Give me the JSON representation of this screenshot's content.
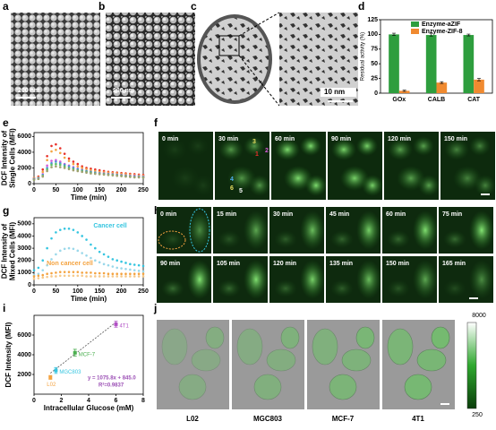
{
  "panels": [
    "a",
    "b",
    "c",
    "d",
    "e",
    "f",
    "g",
    "h",
    "i",
    "j"
  ],
  "images": {
    "a": {
      "scale_bar": "200 nm"
    },
    "b": {
      "scale_bar": "200 nm"
    },
    "c": {
      "scale_bar": "10 nm"
    },
    "f": {
      "times": [
        "0 min",
        "30 min",
        "60 min",
        "90 min",
        "120 min",
        "150 min"
      ],
      "cell_labels": [
        "1",
        "2",
        "3",
        "4",
        "5",
        "6"
      ]
    },
    "h": {
      "times": [
        "0 min",
        "15 min",
        "30 min",
        "45 min",
        "60 min",
        "75 min",
        "90 min",
        "105 min",
        "120 min",
        "135 min",
        "150 min",
        "165 min"
      ]
    },
    "j": {
      "cells": [
        "L02",
        "MGC803",
        "MCF-7",
        "4T1"
      ],
      "colorbar": {
        "max": 8000,
        "min": 250
      }
    }
  },
  "chart_data": [
    {
      "type": "bar",
      "ylabel": "Residual activity (%)",
      "categories": [
        "GOx",
        "CALB",
        "CAT"
      ],
      "series": [
        {
          "name": "Enzyme-aZIF",
          "color": "#2e9e3e",
          "values": [
            100,
            99,
            99
          ],
          "errors": [
            2,
            2,
            1.5
          ]
        },
        {
          "name": "Enzyme-ZIF-8",
          "color": "#f08a30",
          "values": [
            4,
            18,
            23
          ],
          "errors": [
            1,
            1.5,
            2
          ]
        }
      ],
      "ylim": [
        0,
        125
      ],
      "yticks": [
        0,
        25,
        50,
        75,
        100,
        125
      ],
      "legend": "top"
    },
    {
      "type": "scatter",
      "xlabel": "Time (min)",
      "ylabel": [
        "DCF Intensity of",
        "Single Cells (MFI)"
      ],
      "x": [
        0,
        10,
        20,
        30,
        40,
        50,
        60,
        70,
        80,
        90,
        100,
        110,
        120,
        130,
        140,
        150,
        160,
        170,
        180,
        190,
        200,
        210,
        220,
        230,
        240,
        250
      ],
      "series": [
        {
          "color": "#e8302a",
          "values": [
            700,
            900,
            1800,
            3500,
            4800,
            5000,
            4500,
            3800,
            3200,
            2800,
            2500,
            2200,
            2000,
            1900,
            1800,
            1700,
            1600,
            1500,
            1450,
            1400,
            1350,
            1300,
            1250,
            1200,
            1150,
            1100
          ]
        },
        {
          "color": "#f4a340",
          "values": [
            700,
            800,
            1500,
            3000,
            4100,
            4300,
            3900,
            3300,
            2900,
            2500,
            2200,
            2000,
            1850,
            1700,
            1600,
            1500,
            1450,
            1400,
            1350,
            1300,
            1250,
            1200,
            1150,
            1100,
            1050,
            1000
          ]
        },
        {
          "color": "#d65bd8",
          "values": [
            600,
            700,
            1200,
            2300,
            2900,
            3000,
            2800,
            2500,
            2300,
            2100,
            1900,
            1750,
            1600,
            1500,
            1400,
            1350,
            1300,
            1250,
            1200,
            1150,
            1100,
            1050,
            1000,
            1000,
            950,
            900
          ]
        },
        {
          "color": "#4f8fd8",
          "values": [
            600,
            700,
            1100,
            2000,
            2600,
            2800,
            2600,
            2400,
            2200,
            2000,
            1850,
            1700,
            1600,
            1500,
            1400,
            1300,
            1250,
            1200,
            1150,
            1100,
            1050,
            1000,
            950,
            900,
            900,
            850
          ]
        },
        {
          "color": "#5cbf6a",
          "values": [
            500,
            600,
            1000,
            1800,
            2400,
            2500,
            2400,
            2200,
            2000,
            1850,
            1700,
            1600,
            1500,
            1400,
            1300,
            1250,
            1200,
            1150,
            1100,
            1050,
            1000,
            950,
            900,
            850,
            850,
            800
          ]
        },
        {
          "color": "#a0a070",
          "values": [
            500,
            600,
            900,
            1600,
            2100,
            2200,
            2100,
            2000,
            1850,
            1700,
            1600,
            1500,
            1400,
            1300,
            1250,
            1200,
            1150,
            1100,
            1050,
            1000,
            950,
            900,
            850,
            800,
            800,
            750
          ]
        }
      ],
      "xlim": [
        0,
        250
      ],
      "xticks": [
        0,
        50,
        100,
        150,
        200,
        250
      ],
      "ylim": [
        0,
        6500
      ],
      "yticks": [
        0,
        2000,
        4000,
        6000
      ]
    },
    {
      "type": "scatter",
      "xlabel": "Time (min)",
      "ylabel": [
        "DCF Intensity of",
        "Mixed Cells (MFI)"
      ],
      "annotations": [
        {
          "text": "Cancer cell",
          "color": "#35c5e0"
        },
        {
          "text": "Non cancer cell",
          "color": "#f4a340"
        }
      ],
      "x": [
        0,
        10,
        20,
        30,
        40,
        50,
        60,
        70,
        80,
        90,
        100,
        110,
        120,
        130,
        140,
        150,
        160,
        170,
        180,
        190,
        200,
        210,
        220,
        230,
        240,
        250
      ],
      "series": [
        {
          "color": "#35c5e0",
          "values": [
            1200,
            1400,
            2000,
            3000,
            3800,
            4300,
            4500,
            4600,
            4600,
            4500,
            4300,
            4000,
            3700,
            3300,
            3000,
            2700,
            2500,
            2300,
            2100,
            2000,
            1900,
            1800,
            1700,
            1650,
            1600,
            1550
          ]
        },
        {
          "color": "#9ad8ea",
          "values": [
            800,
            900,
            1200,
            1600,
            2100,
            2500,
            2800,
            2950,
            3000,
            2950,
            2800,
            2600,
            2400,
            2200,
            2000,
            1850,
            1700,
            1600,
            1500,
            1400,
            1350,
            1300,
            1250,
            1200,
            1150,
            1100
          ]
        },
        {
          "color": "#f4a340",
          "values": [
            700,
            750,
            800,
            900,
            950,
            1000,
            1050,
            1050,
            1050,
            1050,
            1050,
            1000,
            1000,
            1000,
            950,
            950,
            950,
            900,
            900,
            900,
            900,
            900,
            900,
            900,
            900,
            900
          ]
        },
        {
          "color": "#f6c98a",
          "values": [
            500,
            550,
            600,
            650,
            700,
            700,
            750,
            750,
            750,
            750,
            750,
            750,
            700,
            700,
            700,
            700,
            700,
            700,
            700,
            700,
            700,
            700,
            700,
            700,
            700,
            700
          ]
        }
      ],
      "xlim": [
        0,
        250
      ],
      "xticks": [
        0,
        50,
        100,
        150,
        200,
        250
      ],
      "ylim": [
        0,
        5500
      ],
      "yticks": [
        0,
        1000,
        2000,
        3000,
        4000,
        5000
      ]
    },
    {
      "type": "fit",
      "xlabel": "Intracellular Glucose (mM)",
      "ylabel": [
        "DCF Intensity (MFI)"
      ],
      "categories": [
        "L02",
        "MGC803",
        "MCF-7",
        "4T1"
      ],
      "x": [
        1.2,
        1.6,
        3.0,
        6.0
      ],
      "values": [
        1700,
        2400,
        4200,
        7100
      ],
      "errors": [
        200,
        300,
        350,
        300
      ],
      "colors": [
        "#f4a340",
        "#35c5e0",
        "#4caf50",
        "#b14fc5"
      ],
      "fit_line": {
        "slope": 1075.8,
        "intercept": 845.0,
        "color": "#9b4fb5",
        "label": "y = 1075.8x + 845.0",
        "r2_label": "R²=0.9837"
      },
      "xlim": [
        0,
        8
      ],
      "xticks": [
        0,
        2,
        4,
        6,
        8
      ],
      "ylim": [
        0,
        8000
      ],
      "yticks": [
        2000,
        4000,
        6000
      ]
    }
  ]
}
